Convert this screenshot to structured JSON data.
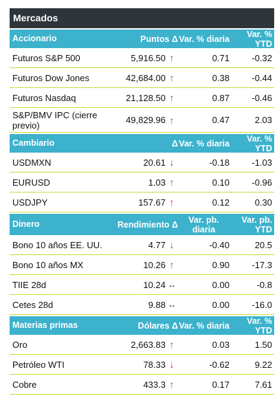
{
  "title": "Mercados",
  "colors": {
    "header_dark": "#2e353b",
    "section_teal": "#3cb2cc",
    "row_rule": "#c8dc3c",
    "arrow_up": "#2f8a2f",
    "arrow_down_red": "#d12b2b"
  },
  "sections": [
    {
      "name": "Accionario",
      "col2": "Puntos Δ",
      "col4": "Var. % diaria",
      "col5": "Var. % YTD",
      "rows": [
        {
          "name": "Futuros S&P 500",
          "value": "5,916.50",
          "arrow": "↑",
          "arrow_icon": "arrow-up-green-icon",
          "daily": "0.71",
          "ytd": "-0.32"
        },
        {
          "name": "Futuros Dow Jones",
          "value": "42,684.00",
          "arrow": "↑",
          "arrow_icon": "arrow-up-green-icon",
          "daily": "0.38",
          "ytd": "-0.44"
        },
        {
          "name": "Futuros Nasdaq",
          "value": "21,128.50",
          "arrow": "↑",
          "arrow_icon": "arrow-up-green-icon",
          "daily": "0.87",
          "ytd": "-0.46"
        },
        {
          "name": "S&P/BMV IPC (cierre previo)",
          "value": "49,829.96",
          "arrow": "↑",
          "arrow_icon": "arrow-up-green-icon",
          "daily": "0.47",
          "ytd": "2.03"
        }
      ]
    },
    {
      "name": "Cambiario",
      "col2": "Δ",
      "col4": "Var. % diaria",
      "col5": "Var. % YTD",
      "rows": [
        {
          "name": "USDMXN",
          "value": "20.61",
          "arrow": "↓",
          "arrow_icon": "arrow-down-green-icon",
          "daily": "-0.18",
          "ytd": "-1.03"
        },
        {
          "name": "EURUSD",
          "value": "1.03",
          "arrow": "↑",
          "arrow_icon": "arrow-up-green-icon",
          "daily": "0.10",
          "ytd": "-0.96"
        },
        {
          "name": "USDJPY",
          "value": "157.67",
          "arrow": "↑",
          "arrow_icon": "arrow-up-red-icon",
          "daily": "0.12",
          "ytd": "0.30"
        }
      ]
    },
    {
      "name": "Dinero",
      "col2": "Rendimiento Δ",
      "col4": "Var. pb. diaria",
      "col5": "Var. pb. YTD",
      "rows": [
        {
          "name": "Bono 10 años EE. UU.",
          "value": "4.77",
          "arrow": "↓",
          "arrow_icon": "arrow-down-green-icon",
          "daily": "-0.40",
          "ytd": "20.5"
        },
        {
          "name": "Bono 10 años MX",
          "value": "10.26",
          "arrow": "↑",
          "arrow_icon": "arrow-up-red-icon",
          "daily": "0.90",
          "ytd": "-17.3"
        },
        {
          "name": "TIIE 28d",
          "value": "10.24",
          "arrow": "↔",
          "arrow_icon": "arrow-left-right-icon",
          "daily": "0.00",
          "ytd": "-0.8"
        },
        {
          "name": "Cetes 28d",
          "value": "9.88",
          "arrow": "↔",
          "arrow_icon": "arrow-left-right-icon",
          "daily": "0.00",
          "ytd": "-16.0"
        }
      ]
    },
    {
      "name": "Materias primas",
      "col2": "Dólares Δ",
      "col4": "Var. % diaria",
      "col5": "Var. % YTD",
      "rows": [
        {
          "name": "Oro",
          "value": "2,663.83",
          "arrow": "↑",
          "arrow_icon": "arrow-up-green-icon",
          "daily": "0.03",
          "ytd": "1.50"
        },
        {
          "name": "Petróleo WTI",
          "value": "78.33",
          "arrow": "↓",
          "arrow_icon": "arrow-down-red-icon",
          "daily": "-0.62",
          "ytd": "9.22"
        },
        {
          "name": "Cobre",
          "value": "433.3",
          "arrow": "↑",
          "arrow_icon": "arrow-up-green-icon",
          "daily": "0.17",
          "ytd": "7.61"
        }
      ]
    }
  ]
}
